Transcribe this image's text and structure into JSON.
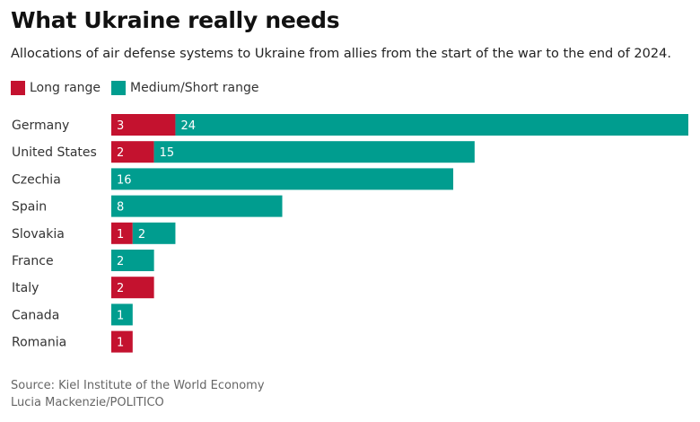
{
  "colors": {
    "long_range": "#c4122f",
    "medium_short_range": "#009d8f"
  },
  "legend": {
    "long_label": "Long range",
    "medium_label": "Medium/Short range"
  },
  "source": {
    "line1": "Source: Kiel Institute of the World Economy",
    "line2": "Lucia Mackenzie/POLITICO"
  },
  "chart_data": {
    "type": "bar",
    "orientation": "horizontal",
    "stacked": true,
    "title": "What Ukraine really needs",
    "subtitle": "Allocations of air defense systems to Ukraine from allies from the start of the war to the end of 2024.",
    "categories": [
      "Germany",
      "United States",
      "Czechia",
      "Spain",
      "Slovakia",
      "France",
      "Italy",
      "Canada",
      "Romania"
    ],
    "series": [
      {
        "name": "Long range",
        "values": [
          3,
          2,
          0,
          0,
          1,
          0,
          2,
          0,
          1
        ]
      },
      {
        "name": "Medium/Short range",
        "values": [
          24,
          15,
          16,
          8,
          2,
          2,
          0,
          1,
          0
        ]
      }
    ],
    "xlim": [
      0,
      27
    ],
    "grid": false,
    "legend_position": "top-left"
  }
}
